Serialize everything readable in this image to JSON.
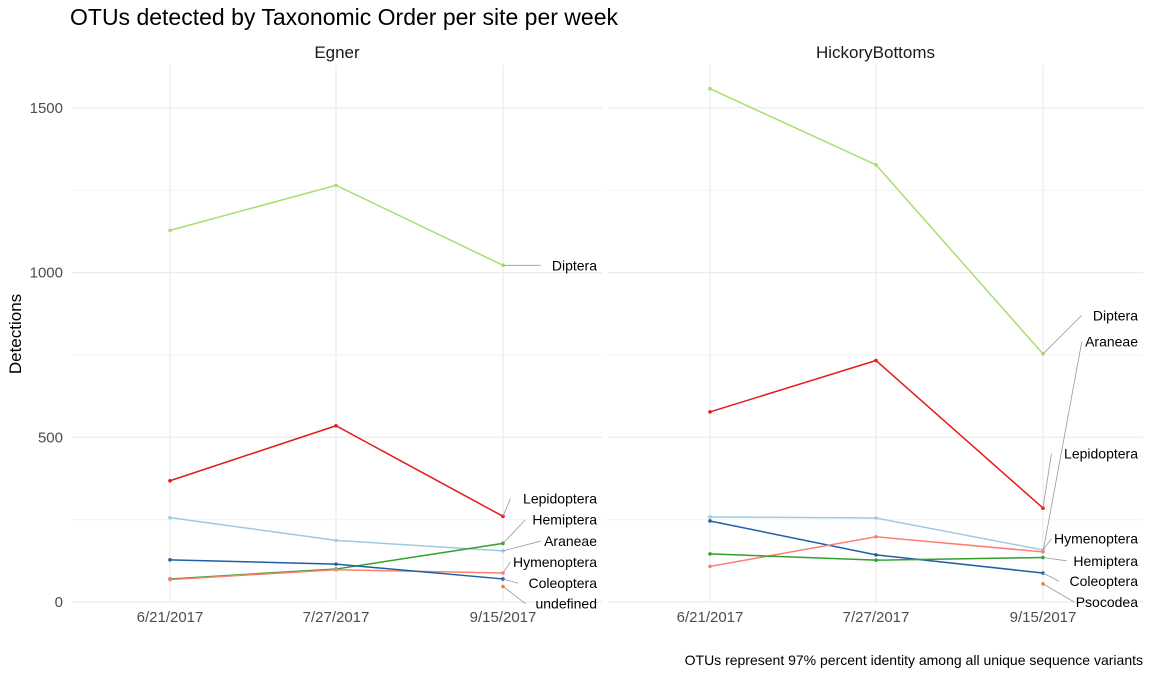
{
  "chart_data": {
    "type": "line",
    "title": "OTUs detected by Taxonomic Order per site per week",
    "ylabel": "Detections",
    "xlabel": "",
    "caption": "OTUs represent 97% percent identity among all unique sequence variants",
    "x": [
      "6/21/2017",
      "7/27/2017",
      "9/15/2017"
    ],
    "ylim": [
      0,
      1630
    ],
    "yticks": [
      0,
      500,
      1000,
      1500
    ],
    "grid": true,
    "legend": "none (direct labels at last point)",
    "panels": [
      {
        "name": "Egner",
        "series": [
          {
            "name": "Diptera",
            "color": "#a6e06a",
            "values": [
              1128,
              1265,
              1022
            ]
          },
          {
            "name": "Lepidoptera",
            "color": "#e31a1c",
            "values": [
              368,
              535,
              260
            ]
          },
          {
            "name": "Araneae",
            "color": "#9ecae1",
            "values": [
              256,
              187,
              155
            ]
          },
          {
            "name": "Hemiptera",
            "color": "#33a02c",
            "values": [
              70,
              100,
              178
            ]
          },
          {
            "name": "Hymenoptera",
            "color": "#fb8072",
            "values": [
              68,
              98,
              88
            ]
          },
          {
            "name": "Coleoptera",
            "color": "#1f5fa6",
            "values": [
              128,
              115,
              70
            ]
          },
          {
            "name": "undefined",
            "color": "#ff7f00",
            "values": [
              null,
              null,
              47
            ]
          }
        ],
        "labels": [
          {
            "series": "Diptera",
            "text": "Diptera",
            "value": 1022
          },
          {
            "series": "Lepidoptera",
            "text": "Lepidoptera",
            "value": 314
          },
          {
            "series": "Hemiptera",
            "text": "Hemiptera",
            "value": 250
          },
          {
            "series": "Araneae",
            "text": "Araneae",
            "value": 185
          },
          {
            "series": "Hymenoptera",
            "text": "Hymenoptera",
            "value": 122
          },
          {
            "series": "Coleoptera",
            "text": "Coleoptera",
            "value": 57
          },
          {
            "series": "undefined",
            "text": "undefined",
            "value": -5
          }
        ]
      },
      {
        "name": "HickoryBottoms",
        "series": [
          {
            "name": "Diptera",
            "color": "#a6e06a",
            "values": [
              1558,
              1327,
              753
            ]
          },
          {
            "name": "Lepidoptera",
            "color": "#e31a1c",
            "values": [
              577,
              733,
              285
            ]
          },
          {
            "name": "Hymenoptera",
            "color": "#9ecae1",
            "values": [
              258,
              255,
              158
            ]
          },
          {
            "name": "Coleoptera",
            "color": "#1f5fa6",
            "values": [
              246,
              143,
              88
            ]
          },
          {
            "name": "Araneae",
            "color": "#fb8072",
            "values": [
              108,
              198,
              152
            ]
          },
          {
            "name": "Hemiptera",
            "color": "#33a02c",
            "values": [
              146,
              127,
              135
            ]
          },
          {
            "name": "Psocodea",
            "color": "#ff7f00",
            "values": [
              null,
              null,
              55
            ]
          }
        ],
        "labels": [
          {
            "series": "Diptera",
            "text": "Diptera",
            "value": 870
          },
          {
            "series": "Araneae",
            "text": "Araneae",
            "value": 790
          },
          {
            "series": "Lepidoptera",
            "text": "Lepidoptera",
            "value": 450
          },
          {
            "series": "Hymenoptera",
            "text": "Hymenoptera",
            "value": 192
          },
          {
            "series": "Hemiptera",
            "text": "Hemiptera",
            "value": 125
          },
          {
            "series": "Coleoptera",
            "text": "Coleoptera",
            "value": 63
          },
          {
            "series": "Psocodea",
            "text": "Psocodea",
            "value": 0
          }
        ]
      }
    ]
  }
}
